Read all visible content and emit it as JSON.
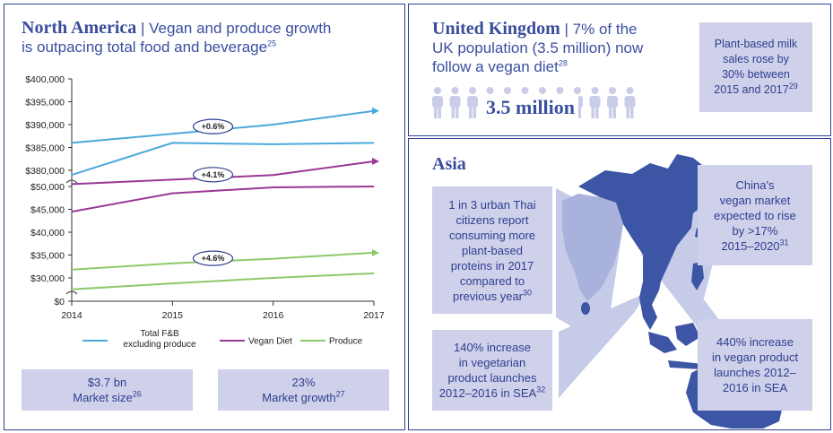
{
  "na": {
    "title_bold": "North America",
    "title_rest_1": " | Vegan and produce growth",
    "title_rest_2": "is outpacing total food and beverage",
    "title_sup": "25",
    "box1_value": "$3.7 bn",
    "box1_label": "Market size",
    "box1_sup": "26",
    "box2_value": "23%",
    "box2_label": "Market growth",
    "box2_sup": "27"
  },
  "uk": {
    "title_bold": "United Kingdom",
    "title_rest_1": " | 7% of the",
    "title_rest_2": "UK population (3.5 million) now",
    "title_rest_3": "follow a vegan diet",
    "title_sup": "28",
    "big_number": "3.5 million",
    "person_count": 12,
    "box_line1": "Plant-based milk",
    "box_line2": "sales rose by",
    "box_line3": "30% between",
    "box_line4": "2015 and 2017",
    "box_sup": "29"
  },
  "asia": {
    "title": "Asia",
    "thai_lines": [
      "1 in 3 urban Thai",
      "citizens report",
      "consuming more",
      "plant-based",
      "proteins in 2017",
      "compared to"
    ],
    "thai_last": "previous year",
    "thai_sup": "30",
    "china_lines": [
      "China's",
      "vegan market",
      "expected to rise",
      "by >17%"
    ],
    "china_last": "2015–2020",
    "china_sup": "31",
    "veg_lines": [
      "140% increase",
      "in vegetarian",
      "product launches"
    ],
    "veg_last": "2012–2016 in SEA",
    "veg_sup": "32",
    "vegan_lines": [
      "440% increase",
      "in vegan product",
      "launches 2012–",
      "2016 in SEA"
    ]
  },
  "chart_data": {
    "type": "line",
    "x": [
      2014,
      2015,
      2016,
      2017
    ],
    "x_tick_labels": [
      "2014",
      "2015",
      "2016",
      "2017"
    ],
    "y_tick_labels_upper": [
      "$400,000",
      "$395,000",
      "$390,000",
      "$385,000",
      "$380,000"
    ],
    "y_tick_labels_lower": [
      "$50,000",
      "$45,000",
      "$40,000",
      "$35,000",
      "$30,000",
      "$0"
    ],
    "axis_break": true,
    "series": [
      {
        "name": "Total F&B excluding produce",
        "color": "#4aa9dc",
        "values": [
          386000,
          388000,
          390000,
          393000
        ],
        "growth_label": "+0.6%"
      },
      {
        "name": "Total F&B excluding produce",
        "color": "#4aa9dc",
        "values": [
          379000,
          386000,
          385700,
          386000
        ]
      },
      {
        "name": "Vegan Diet",
        "color": "#9b3795",
        "values": [
          50500,
          51500,
          52500,
          55500
        ],
        "growth_label": "+4.1%"
      },
      {
        "name": "Vegan Diet",
        "color": "#9b3795",
        "values": [
          44500,
          48500,
          49800,
          50000
        ]
      },
      {
        "name": "Produce",
        "color": "#8dc96a",
        "values": [
          31800,
          33200,
          34200,
          35500
        ],
        "growth_label": "+4.6%"
      },
      {
        "name": "Produce",
        "color": "#8dc96a",
        "values": [
          27500,
          28800,
          30000,
          31000
        ]
      }
    ],
    "legend": [
      {
        "label_line1": "Total F&B",
        "label_line2": "excluding produce",
        "color": "#4aa9dc"
      },
      {
        "label_line1": "Vegan Diet",
        "color": "#9b3795"
      },
      {
        "label_line1": "Produce",
        "color": "#8dc96a"
      }
    ]
  },
  "colors": {
    "navy": "#2e3f8f",
    "box": "#cfd0ea",
    "map": "#3c55a5",
    "map_light": "#a9b2dc"
  }
}
